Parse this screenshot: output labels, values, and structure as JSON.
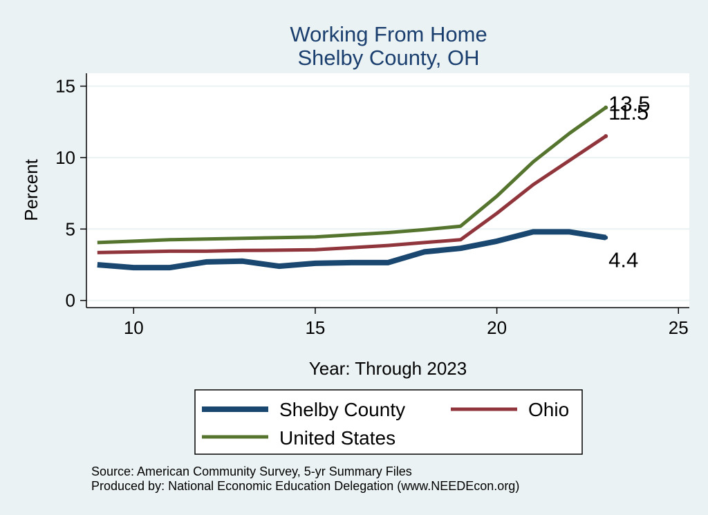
{
  "chart_data": {
    "type": "line",
    "title": [
      "Working From Home",
      "Shelby County, OH"
    ],
    "xlabel": "Year: Through 2023",
    "ylabel": "Percent",
    "xlim": [
      8.7,
      25.3
    ],
    "ylim": [
      -0.5,
      15.9
    ],
    "xticks": [
      10,
      15,
      20,
      25
    ],
    "yticks": [
      0,
      5,
      10,
      15
    ],
    "grid": true,
    "legend_position": "bottom",
    "x": [
      9,
      10,
      11,
      12,
      13,
      14,
      15,
      16,
      17,
      18,
      19,
      20,
      21,
      22,
      23
    ],
    "series": [
      {
        "name": "Shelby County",
        "color": "#1a476f",
        "values": [
          2.5,
          2.3,
          2.3,
          2.7,
          2.75,
          2.4,
          2.6,
          2.65,
          2.65,
          3.4,
          3.65,
          4.15,
          4.8,
          4.8,
          4.4
        ],
        "end_label": "4.4"
      },
      {
        "name": "Ohio",
        "color": "#90353b",
        "values": [
          3.35,
          3.4,
          3.45,
          3.45,
          3.5,
          3.52,
          3.55,
          3.7,
          3.85,
          4.05,
          4.25,
          6.1,
          8.1,
          9.8,
          11.5
        ],
        "end_label": "11.5"
      },
      {
        "name": "United States",
        "color": "#55752f",
        "values": [
          4.05,
          4.15,
          4.25,
          4.3,
          4.35,
          4.4,
          4.45,
          4.6,
          4.75,
          4.95,
          5.2,
          7.3,
          9.7,
          11.7,
          13.5
        ],
        "end_label": "13.5"
      }
    ]
  },
  "legend": {
    "items": [
      {
        "label": "Shelby County",
        "color": "#1a476f"
      },
      {
        "label": "Ohio",
        "color": "#90353b"
      },
      {
        "label": "United States",
        "color": "#55752f"
      }
    ]
  },
  "notes": {
    "source": "Source: American Community Survey, 5-yr Summary Files",
    "produced": "Produced by: National Economic Education Delegation (www.NEEDEcon.org)"
  }
}
